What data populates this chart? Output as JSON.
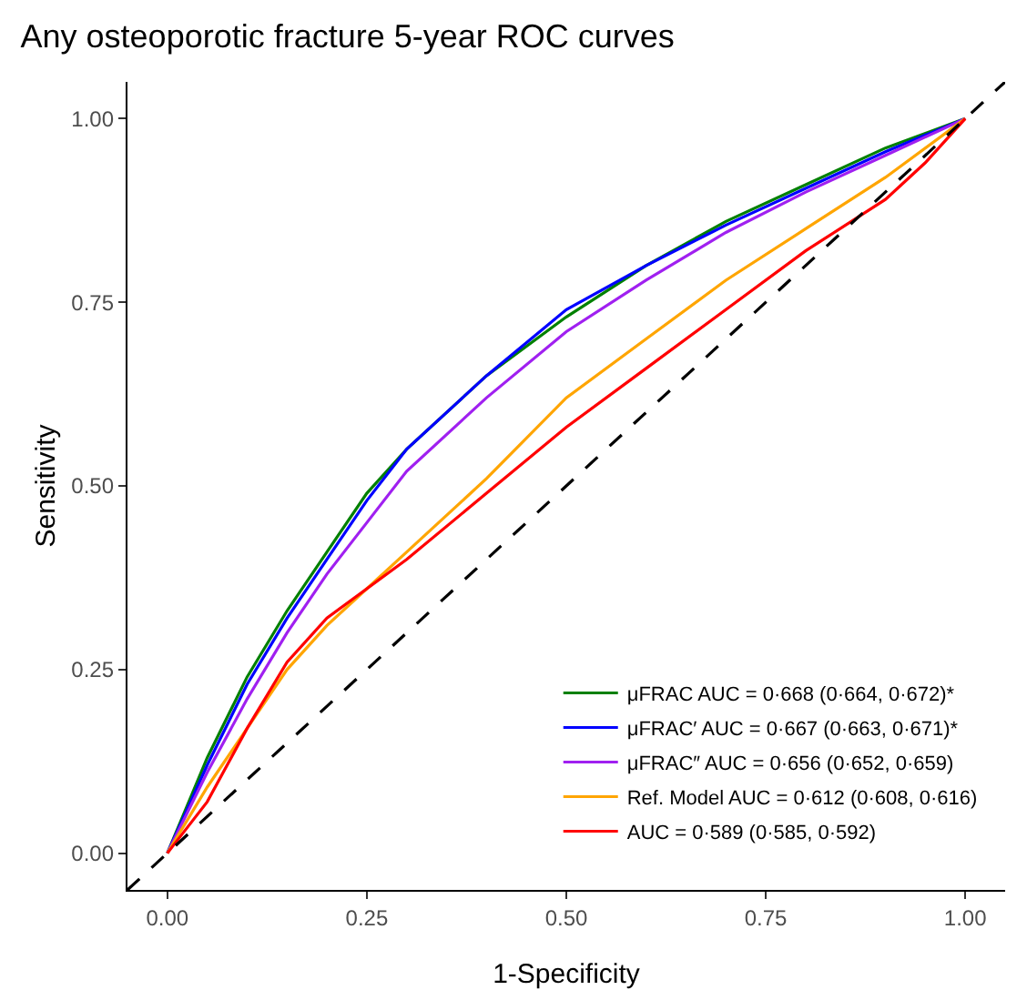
{
  "chart_data": {
    "type": "line",
    "title": "Any osteoporotic fracture 5-year ROC curves",
    "xlabel": "1-Specificity",
    "ylabel": "Sensitivity",
    "xlim": [
      -0.05,
      1.05
    ],
    "ylim": [
      -0.05,
      1.05
    ],
    "xticks": [
      {
        "value": 0,
        "label": "0.00"
      },
      {
        "value": 0.25,
        "label": "0.25"
      },
      {
        "value": 0.5,
        "label": "0.50"
      },
      {
        "value": 0.75,
        "label": "0.75"
      },
      {
        "value": 1,
        "label": "1.00"
      }
    ],
    "yticks": [
      {
        "value": 0,
        "label": "0.00"
      },
      {
        "value": 0.25,
        "label": "0.25"
      },
      {
        "value": 0.5,
        "label": "0.50"
      },
      {
        "value": 0.75,
        "label": "0.75"
      },
      {
        "value": 1,
        "label": "1.00"
      }
    ],
    "grid": false,
    "legend": "bottom right",
    "marker": "none",
    "series": [
      {
        "name": "μFRAC AUC = 0·668 (0·664, 0·672)*",
        "color": "#008000",
        "x": [
          0,
          0.05,
          0.1,
          0.15,
          0.2,
          0.25,
          0.3,
          0.4,
          0.5,
          0.6,
          0.7,
          0.8,
          0.9,
          1
        ],
        "values": [
          0,
          0.13,
          0.24,
          0.33,
          0.41,
          0.49,
          0.55,
          0.65,
          0.73,
          0.8,
          0.86,
          0.91,
          0.96,
          1
        ]
      },
      {
        "name": "μFRAC′ AUC = 0·667 (0·663, 0·671)*",
        "color": "#0000ff",
        "x": [
          0,
          0.05,
          0.1,
          0.15,
          0.2,
          0.25,
          0.3,
          0.4,
          0.5,
          0.6,
          0.7,
          0.8,
          0.9,
          1
        ],
        "values": [
          0,
          0.12,
          0.23,
          0.32,
          0.4,
          0.48,
          0.55,
          0.65,
          0.74,
          0.8,
          0.855,
          0.905,
          0.955,
          1
        ]
      },
      {
        "name": "μFRAC″ AUC = 0·656 (0·652, 0·659)",
        "color": "#a020f0",
        "x": [
          0,
          0.05,
          0.1,
          0.15,
          0.2,
          0.25,
          0.3,
          0.4,
          0.5,
          0.6,
          0.7,
          0.8,
          0.9,
          1
        ],
        "values": [
          0,
          0.11,
          0.21,
          0.3,
          0.38,
          0.45,
          0.52,
          0.62,
          0.71,
          0.78,
          0.845,
          0.9,
          0.95,
          1
        ]
      },
      {
        "name": "Ref. Model AUC = 0·612 (0·608, 0·616)",
        "color": "#ffa500",
        "x": [
          0,
          0.05,
          0.1,
          0.15,
          0.2,
          0.25,
          0.3,
          0.4,
          0.5,
          0.6,
          0.7,
          0.8,
          0.9,
          1
        ],
        "values": [
          0,
          0.09,
          0.17,
          0.25,
          0.31,
          0.36,
          0.41,
          0.51,
          0.62,
          0.7,
          0.78,
          0.85,
          0.92,
          1
        ]
      },
      {
        "name": "AUC = 0·589 (0·585, 0·592)",
        "color": "#ff0000",
        "x": [
          0,
          0.05,
          0.1,
          0.15,
          0.2,
          0.25,
          0.3,
          0.4,
          0.5,
          0.6,
          0.7,
          0.8,
          0.9,
          0.95,
          1
        ],
        "values": [
          0,
          0.07,
          0.17,
          0.26,
          0.32,
          0.36,
          0.4,
          0.49,
          0.58,
          0.66,
          0.74,
          0.82,
          0.89,
          0.94,
          1
        ]
      },
      {
        "color": "#000000",
        "line_style": "dashed",
        "x": [
          -0.05,
          1.05
        ],
        "values": [
          -0.05,
          1.05
        ]
      }
    ]
  }
}
